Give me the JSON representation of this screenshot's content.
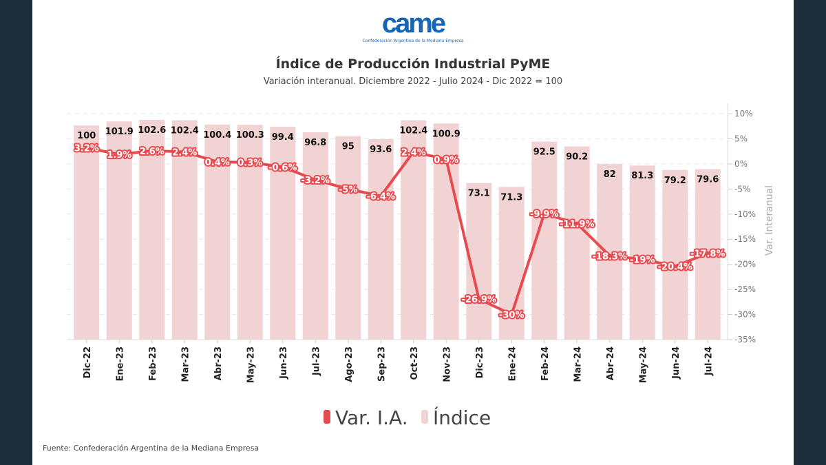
{
  "logo": {
    "mark": "came",
    "subtitle": "Confederación Argentina de la Mediana Empresa"
  },
  "source": "Fuente: Confederación Argentina de la Mediana Empresa",
  "colors": {
    "line": "#e84a4f",
    "bar": "#f1d3d3",
    "background": "#1c2d3c"
  },
  "chart_data": {
    "type": "bar+line",
    "title": "Índice de Producción Industrial PyME",
    "subtitle": "Variación interanual. Diciembre 2022 - Julio 2024 - Dic 2022 = 100",
    "categories": [
      "Dic-22",
      "Ene-23",
      "Feb-23",
      "Mar-23",
      "Abr-23",
      "May-23",
      "Jun-23",
      "Jul-23",
      "Ago-23",
      "Sep-23",
      "Oct-23",
      "Nov-23",
      "Dic-23",
      "Ene-24",
      "Feb-24",
      "Mar-24",
      "Abr-24",
      "May-24",
      "Jun-24",
      "Jul-24"
    ],
    "series": [
      {
        "name": "Var. I.A.",
        "type": "line",
        "axis": "right",
        "unit": "%",
        "values": [
          3.2,
          1.9,
          2.6,
          2.4,
          0.4,
          0.3,
          -0.6,
          -3.2,
          -5,
          -6.4,
          2.4,
          0.9,
          -26.9,
          -30,
          -9.9,
          -11.9,
          -18.3,
          -19,
          -20.4,
          -17.8
        ]
      },
      {
        "name": "Índice",
        "type": "bar",
        "axis": "left-hidden",
        "values": [
          100,
          101.9,
          102.6,
          102.4,
          100.4,
          100.3,
          99.4,
          96.8,
          95,
          93.6,
          102.4,
          100.9,
          73.1,
          71.3,
          92.5,
          90.2,
          82,
          81.3,
          79.2,
          79.6
        ]
      }
    ],
    "y2label": "Var. Interanual",
    "y2lim": [
      -35,
      10
    ],
    "y2ticks": [
      "10%",
      "5%",
      "0%",
      "-5%",
      "-10%",
      "-15%",
      "-20%",
      "-25%",
      "-30%",
      "-35%"
    ],
    "legend": {
      "position": "bottom",
      "entries": [
        "Var. I.A.",
        "Índice"
      ]
    },
    "grid": true
  }
}
